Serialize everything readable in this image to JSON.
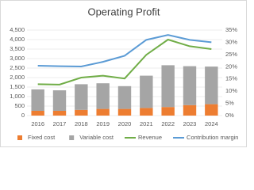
{
  "chart_data": {
    "type": "combo",
    "title": "Operating Profit",
    "categories": [
      "2016",
      "2017",
      "2018",
      "2019",
      "2020",
      "2021",
      "2022",
      "2023",
      "2024"
    ],
    "series": [
      {
        "name": "Fixed cost",
        "type": "bar",
        "stack": true,
        "color": "#ed7d31",
        "values": [
          250,
          250,
          300,
          350,
          350,
          400,
          450,
          550,
          600
        ]
      },
      {
        "name": "Variable cost",
        "type": "bar",
        "stack": true,
        "color": "#a5a5a5",
        "values": [
          1130,
          1080,
          1350,
          1350,
          1200,
          1700,
          2200,
          2050,
          1980
        ]
      },
      {
        "name": "Revenue",
        "type": "line",
        "color": "#70ad47",
        "values": [
          1650,
          1630,
          2000,
          2100,
          1950,
          3200,
          4000,
          3650,
          3500
        ]
      },
      {
        "name": "Contribution margin",
        "type": "line",
        "axis": "y2",
        "color": "#5b9bd5",
        "values": [
          20.4,
          20.2,
          20.1,
          22,
          24.5,
          31,
          33,
          31,
          30
        ]
      }
    ],
    "ylim": [
      0,
      4500
    ],
    "yticks": [
      0,
      500,
      {
        "value": 1000,
        "label": "1,000"
      },
      {
        "value": 1500,
        "label": "1,500"
      },
      {
        "value": 2000,
        "label": "2,000"
      },
      {
        "value": 2500,
        "label": "2,500"
      },
      {
        "value": 3000,
        "label": "3,000"
      },
      {
        "value": 3500,
        "label": "3,500"
      },
      {
        "value": 4000,
        "label": "4,000"
      },
      {
        "value": 4500,
        "label": "4,500"
      }
    ],
    "y2lim": [
      0,
      35
    ],
    "y2ticks": [
      {
        "value": 0,
        "label": "0%"
      },
      {
        "value": 5,
        "label": "5%"
      },
      {
        "value": 10,
        "label": "10%"
      },
      {
        "value": 15,
        "label": "15%"
      },
      {
        "value": 20,
        "label": "20%"
      },
      {
        "value": 25,
        "label": "25%"
      },
      {
        "value": 30,
        "label": "30%"
      },
      {
        "value": 35,
        "label": "35%"
      }
    ],
    "grid": true
  }
}
